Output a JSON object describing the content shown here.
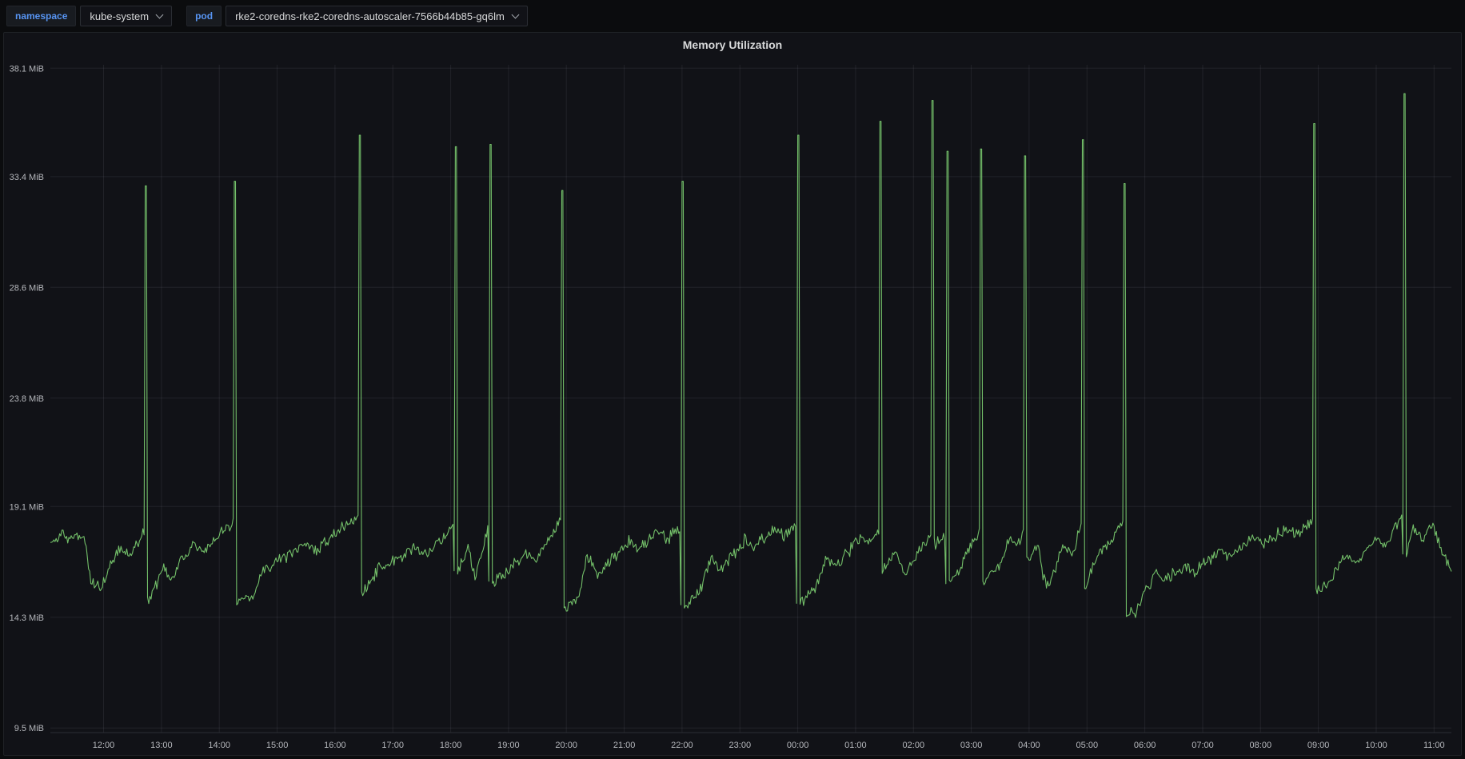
{
  "page": {
    "background": "#0b0c0e"
  },
  "toolbar": {
    "variables": [
      {
        "label": "namespace",
        "value": "kube-system"
      },
      {
        "label": "pod",
        "value": "rke2-coredns-rke2-coredns-autoscaler-7566b44b85-gq6lm"
      }
    ]
  },
  "panel": {
    "title": "Memory Utilization"
  },
  "chart_data": {
    "type": "line",
    "title": "Memory Utilization",
    "xlabel": "",
    "ylabel": "",
    "unit": "MiB",
    "legend": "none",
    "grid": true,
    "line_color": "#73bf69",
    "grid_color": "rgba(204,204,220,0.09)",
    "axis_line_color": "#2c2f34",
    "axis_text_color": "#b6b8bd",
    "x_range": [
      11.08,
      35.3
    ],
    "y_range": [
      9.3,
      38.25
    ],
    "x_tick_values": [
      12,
      13,
      14,
      15,
      16,
      17,
      18,
      19,
      20,
      21,
      22,
      23,
      24,
      25,
      26,
      27,
      28,
      29,
      30,
      31,
      32,
      33,
      34,
      35
    ],
    "x_tick_labels": [
      "12:00",
      "13:00",
      "14:00",
      "15:00",
      "16:00",
      "17:00",
      "18:00",
      "19:00",
      "20:00",
      "21:00",
      "22:00",
      "23:00",
      "00:00",
      "01:00",
      "02:00",
      "03:00",
      "04:00",
      "05:00",
      "06:00",
      "07:00",
      "08:00",
      "09:00",
      "10:00",
      "11:00"
    ],
    "y_tick_values": [
      9.5,
      14.3,
      19.1,
      23.8,
      28.6,
      33.4,
      38.1
    ],
    "y_tick_labels": [
      "9.5 MiB",
      "14.3 MiB",
      "19.1 MiB",
      "23.8 MiB",
      "28.6 MiB",
      "33.4 MiB",
      "38.1 MiB"
    ],
    "series": [
      {
        "name": "memory_mib",
        "noise_amplitude": 0.32,
        "sample_step_hours": 0.02,
        "spike_width_hours": 0.04,
        "baseline_segments": [
          [
            11.1,
            17.5,
            11.3,
            18.0
          ],
          [
            11.3,
            18.0,
            11.45,
            17.6
          ],
          [
            11.45,
            17.6,
            11.67,
            17.9
          ],
          [
            11.67,
            17.9,
            11.78,
            15.8
          ],
          [
            11.78,
            15.8,
            11.95,
            15.6
          ],
          [
            11.95,
            15.6,
            12.25,
            17.2
          ],
          [
            12.25,
            17.2,
            12.45,
            17.0
          ],
          [
            12.45,
            17.0,
            12.72,
            18.1
          ],
          [
            12.78,
            14.9,
            13.05,
            16.6
          ],
          [
            13.05,
            16.6,
            13.15,
            15.9
          ],
          [
            13.15,
            15.9,
            13.55,
            17.6
          ],
          [
            13.55,
            17.6,
            13.7,
            17.2
          ],
          [
            13.7,
            17.2,
            14.25,
            18.4
          ],
          [
            14.32,
            15.0,
            14.6,
            15.3
          ],
          [
            14.6,
            15.3,
            14.75,
            16.3
          ],
          [
            14.75,
            16.3,
            15.5,
            17.5
          ],
          [
            15.5,
            17.5,
            15.65,
            17.1
          ],
          [
            15.65,
            17.1,
            16.1,
            18.2
          ],
          [
            16.1,
            18.2,
            16.4,
            18.5
          ],
          [
            16.48,
            15.4,
            16.6,
            15.8
          ],
          [
            16.6,
            15.8,
            16.75,
            16.4
          ],
          [
            16.75,
            16.4,
            17.4,
            17.3
          ],
          [
            17.4,
            17.3,
            17.55,
            17.0
          ],
          [
            17.55,
            17.0,
            18.05,
            18.2
          ],
          [
            18.13,
            16.2,
            18.3,
            17.4
          ],
          [
            18.3,
            17.4,
            18.42,
            16.1
          ],
          [
            18.42,
            16.1,
            18.65,
            18.1
          ],
          [
            18.73,
            15.9,
            19.0,
            16.3
          ],
          [
            19.0,
            16.3,
            19.3,
            17.2
          ],
          [
            19.3,
            17.2,
            19.45,
            16.8
          ],
          [
            19.45,
            16.8,
            19.9,
            18.5
          ],
          [
            19.98,
            14.7,
            20.2,
            15.2
          ],
          [
            20.2,
            15.2,
            20.35,
            16.9
          ],
          [
            20.35,
            16.9,
            20.55,
            16.2
          ],
          [
            20.55,
            16.2,
            21.1,
            17.6
          ],
          [
            21.1,
            17.6,
            21.25,
            17.2
          ],
          [
            21.25,
            17.2,
            21.6,
            18.1
          ],
          [
            21.6,
            18.1,
            21.75,
            17.7
          ],
          [
            21.75,
            17.7,
            21.97,
            18.3
          ],
          [
            22.05,
            14.8,
            22.3,
            15.4
          ],
          [
            22.3,
            15.4,
            22.5,
            16.8
          ],
          [
            22.5,
            16.8,
            22.65,
            16.3
          ],
          [
            22.65,
            16.3,
            23.1,
            17.7
          ],
          [
            23.1,
            17.7,
            23.25,
            17.3
          ],
          [
            23.25,
            17.3,
            23.6,
            18.2
          ],
          [
            23.6,
            18.2,
            23.75,
            17.8
          ],
          [
            23.75,
            17.8,
            23.97,
            18.3
          ],
          [
            24.05,
            14.9,
            24.3,
            15.6
          ],
          [
            24.3,
            15.6,
            24.5,
            17.0
          ],
          [
            24.5,
            17.0,
            24.65,
            16.5
          ],
          [
            24.65,
            16.5,
            25.1,
            17.8
          ],
          [
            25.1,
            17.8,
            25.25,
            17.4
          ],
          [
            25.25,
            17.4,
            25.4,
            18.2
          ],
          [
            25.47,
            16.4,
            25.7,
            17.2
          ],
          [
            25.7,
            17.2,
            25.85,
            16.1
          ],
          [
            25.85,
            16.1,
            26.1,
            17.3
          ],
          [
            26.1,
            17.3,
            26.3,
            17.9
          ],
          [
            26.38,
            17.5,
            26.55,
            17.8
          ],
          [
            26.63,
            15.8,
            26.8,
            16.4
          ],
          [
            26.8,
            16.4,
            27.0,
            17.5
          ],
          [
            27.0,
            17.5,
            27.15,
            18.0
          ],
          [
            27.22,
            15.9,
            27.5,
            16.5
          ],
          [
            27.5,
            16.5,
            27.65,
            17.8
          ],
          [
            27.65,
            17.8,
            27.8,
            17.4
          ],
          [
            27.8,
            17.4,
            27.9,
            18.0
          ],
          [
            27.97,
            16.8,
            28.15,
            17.3
          ],
          [
            28.15,
            17.3,
            28.3,
            15.5
          ],
          [
            28.3,
            15.5,
            28.6,
            17.4
          ],
          [
            28.6,
            17.4,
            28.75,
            17.0
          ],
          [
            28.75,
            17.0,
            28.9,
            18.3
          ],
          [
            28.97,
            15.6,
            29.2,
            17.0
          ],
          [
            29.2,
            17.0,
            29.4,
            17.6
          ],
          [
            29.4,
            17.6,
            29.63,
            18.5
          ],
          [
            29.7,
            14.4,
            29.85,
            14.6
          ],
          [
            29.85,
            14.6,
            30.05,
            15.6
          ],
          [
            30.05,
            15.6,
            30.2,
            16.3
          ],
          [
            30.2,
            16.3,
            30.35,
            15.9
          ],
          [
            30.35,
            15.9,
            30.7,
            16.5
          ],
          [
            30.7,
            16.5,
            30.85,
            16.2
          ],
          [
            30.85,
            16.2,
            31.3,
            17.2
          ],
          [
            31.3,
            17.2,
            31.45,
            16.9
          ],
          [
            31.45,
            16.9,
            31.9,
            17.8
          ],
          [
            31.9,
            17.8,
            32.05,
            17.5
          ],
          [
            32.05,
            17.5,
            32.5,
            18.2
          ],
          [
            32.5,
            18.2,
            32.65,
            17.9
          ],
          [
            32.65,
            17.9,
            32.9,
            18.6
          ],
          [
            32.97,
            15.4,
            33.2,
            15.9
          ],
          [
            33.2,
            15.9,
            33.45,
            17.0
          ],
          [
            33.45,
            17.0,
            33.6,
            16.6
          ],
          [
            33.6,
            16.6,
            34.0,
            17.8
          ],
          [
            34.0,
            17.8,
            34.15,
            17.4
          ],
          [
            34.15,
            17.4,
            34.45,
            18.7
          ],
          [
            34.53,
            17.2,
            34.65,
            18.3
          ],
          [
            34.65,
            18.3,
            34.8,
            17.6
          ],
          [
            34.8,
            17.6,
            34.95,
            18.4
          ],
          [
            34.95,
            18.4,
            35.3,
            16.2
          ]
        ],
        "spikes": [
          [
            12.73,
            33.0
          ],
          [
            14.27,
            33.2
          ],
          [
            16.42,
            35.2
          ],
          [
            18.08,
            34.7
          ],
          [
            18.68,
            34.8
          ],
          [
            19.93,
            32.8
          ],
          [
            22.0,
            33.2
          ],
          [
            24.0,
            35.2
          ],
          [
            25.42,
            35.8
          ],
          [
            26.33,
            36.7
          ],
          [
            26.58,
            34.5
          ],
          [
            27.17,
            34.6
          ],
          [
            27.92,
            34.3
          ],
          [
            28.92,
            35.0
          ],
          [
            29.65,
            33.1
          ],
          [
            32.92,
            35.7
          ],
          [
            34.48,
            37.0
          ]
        ]
      }
    ]
  }
}
